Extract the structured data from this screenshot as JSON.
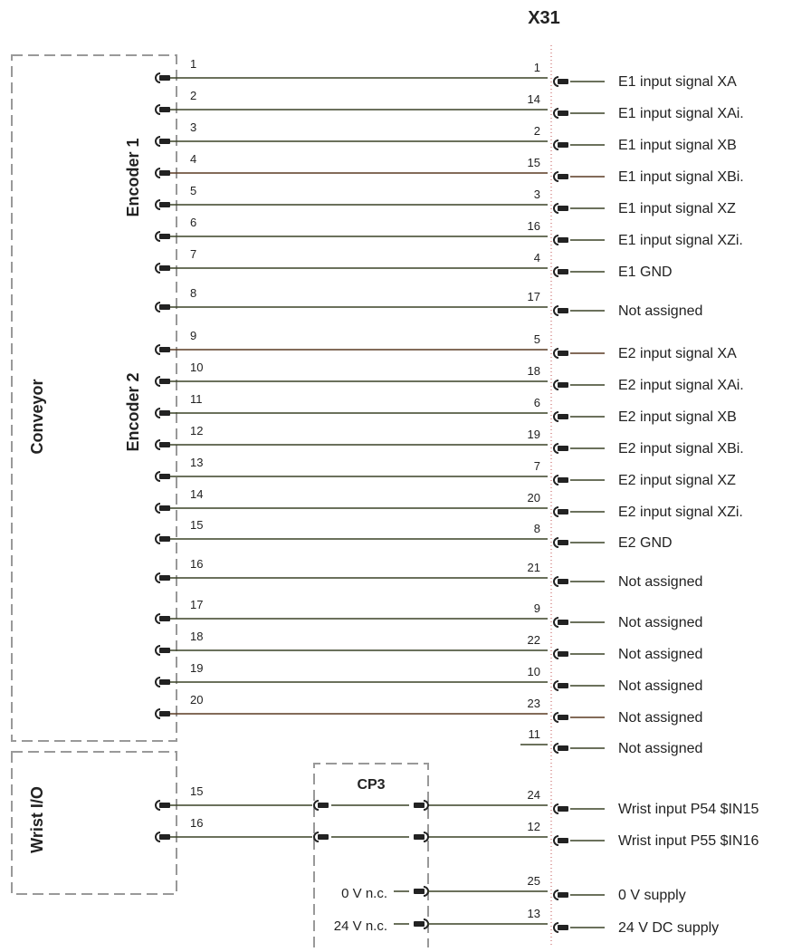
{
  "connector": {
    "title": "X31"
  },
  "groups": {
    "conveyor": "Conveyor",
    "encoder1": "Encoder 1",
    "encoder2": "Encoder 2",
    "wrist_io": "Wrist I/O",
    "cp3": "CP3"
  },
  "colors": {
    "wire": "#3a4226",
    "wire_alt": "#5a3a22",
    "dash": "#999999",
    "plug": "#222222"
  },
  "conveyor_wires": [
    {
      "left_pin": "1",
      "x31_pin": "1",
      "signal": "E1 input signal XA"
    },
    {
      "left_pin": "2",
      "x31_pin": "14",
      "signal": "E1 input signal XAi."
    },
    {
      "left_pin": "3",
      "x31_pin": "2",
      "signal": "E1 input signal XB"
    },
    {
      "left_pin": "4",
      "x31_pin": "15",
      "signal": "E1 input signal XBi."
    },
    {
      "left_pin": "5",
      "x31_pin": "3",
      "signal": "E1 input signal XZ"
    },
    {
      "left_pin": "6",
      "x31_pin": "16",
      "signal": "E1 input signal XZi."
    },
    {
      "left_pin": "7",
      "x31_pin": "4",
      "signal": "E1 GND"
    },
    {
      "left_pin": "8",
      "x31_pin": "17",
      "signal": "Not assigned"
    },
    {
      "left_pin": "9",
      "x31_pin": "5",
      "signal": "E2 input signal XA"
    },
    {
      "left_pin": "10",
      "x31_pin": "18",
      "signal": "E2 input signal XAi."
    },
    {
      "left_pin": "11",
      "x31_pin": "6",
      "signal": "E2 input signal XB"
    },
    {
      "left_pin": "12",
      "x31_pin": "19",
      "signal": "E2 input signal XBi."
    },
    {
      "left_pin": "13",
      "x31_pin": "7",
      "signal": "E2 input signal XZ"
    },
    {
      "left_pin": "14",
      "x31_pin": "20",
      "signal": "E2 input signal XZi."
    },
    {
      "left_pin": "15",
      "x31_pin": "8",
      "signal": "E2 GND"
    },
    {
      "left_pin": "16",
      "x31_pin": "21",
      "signal": "Not assigned"
    },
    {
      "left_pin": "17",
      "x31_pin": "9",
      "signal": "Not assigned"
    },
    {
      "left_pin": "18",
      "x31_pin": "22",
      "signal": "Not assigned"
    },
    {
      "left_pin": "19",
      "x31_pin": "10",
      "signal": "Not assigned"
    },
    {
      "left_pin": "20",
      "x31_pin": "23",
      "signal": "Not assigned"
    }
  ],
  "unconnected": {
    "x31_pin": "11",
    "signal": "Not assigned"
  },
  "wrist_wires": [
    {
      "left_pin": "15",
      "x31_pin": "24",
      "signal": "Wrist input P54 $IN15"
    },
    {
      "left_pin": "16",
      "x31_pin": "12",
      "signal": "Wrist input P55 $IN16"
    }
  ],
  "supply_wires": [
    {
      "source": "0 V n.c.",
      "x31_pin": "25",
      "signal": "0 V supply"
    },
    {
      "source": "24 V n.c.",
      "x31_pin": "13",
      "signal": "24 V DC supply"
    }
  ]
}
